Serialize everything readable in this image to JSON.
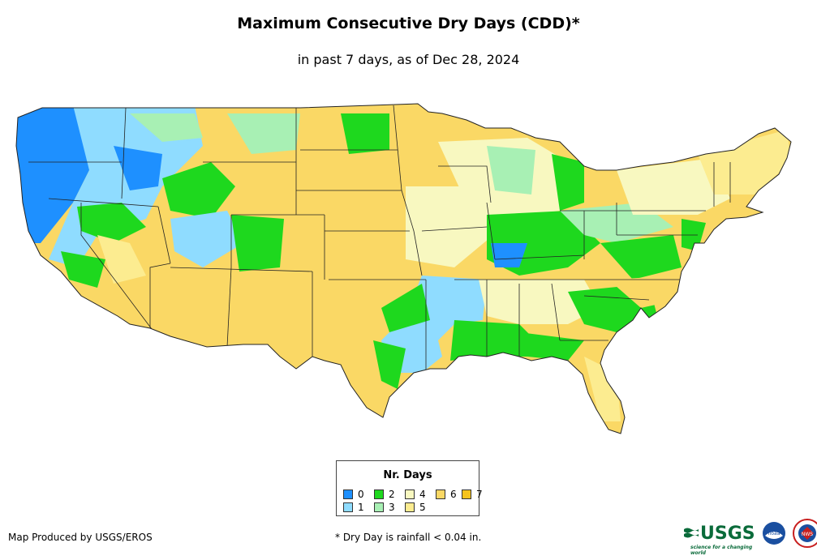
{
  "title": "Maximum Consecutive Dry Days (CDD)*",
  "subtitle": "in past 7 days, as of Dec 28, 2024",
  "legend": {
    "title": "Nr. Days",
    "items": [
      {
        "label": "0",
        "color": "#1e90ff"
      },
      {
        "label": "1",
        "color": "#8fdcff"
      },
      {
        "label": "2",
        "color": "#1ed81e"
      },
      {
        "label": "3",
        "color": "#a8f0b4"
      },
      {
        "label": "4",
        "color": "#f8f8c0"
      },
      {
        "label": "5",
        "color": "#fcec90"
      },
      {
        "label": "6",
        "color": "#fad865"
      },
      {
        "label": "7",
        "color": "#f6c31c"
      }
    ]
  },
  "credit": "Map Produced by USGS/EROS",
  "footnote": "* Dry Day is rainfall < 0.04 in.",
  "logos": {
    "usgs": "USGS",
    "usgs_tagline": "science for a changing world",
    "noaa": "noaa",
    "nws": "NWS"
  },
  "icons": [
    "usgs-logo-icon",
    "noaa-logo-icon",
    "nws-logo-icon"
  ]
}
